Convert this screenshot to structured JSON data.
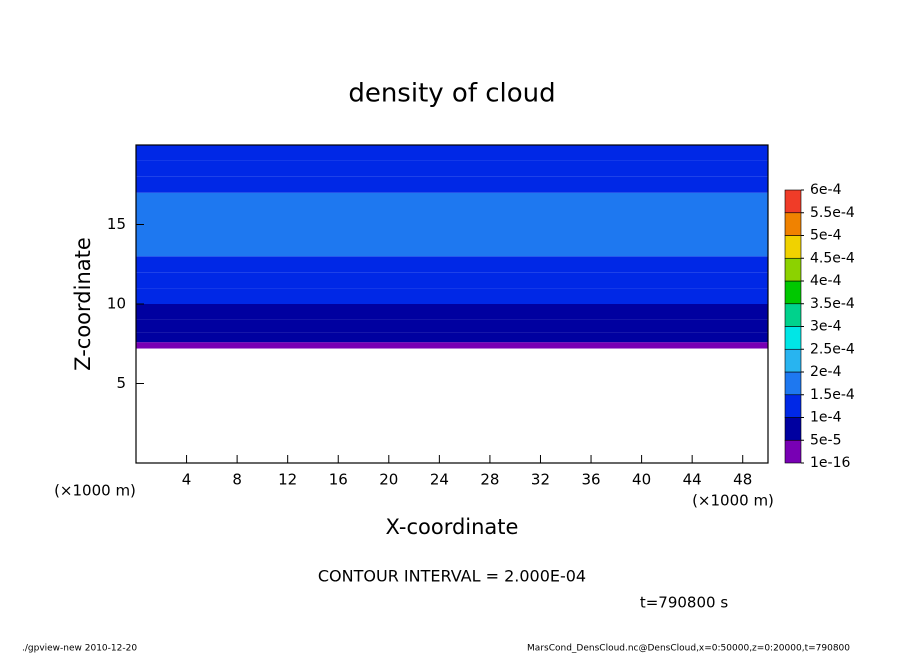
{
  "chart_data": {
    "type": "contour",
    "title": "density of cloud",
    "x_label": "X-coordinate",
    "y_label": "Z-coordinate",
    "x_unit": "(×1000 m)",
    "y_unit": "(×1000 m)",
    "xlim": [
      0,
      50
    ],
    "xticks": [
      4,
      8,
      12,
      16,
      20,
      24,
      28,
      32,
      36,
      40,
      44,
      48
    ],
    "ylim": [
      0,
      20
    ],
    "yticks": [
      5,
      10,
      15
    ],
    "z_edges": [
      7.2,
      7.6,
      8.2,
      9,
      10,
      11,
      12,
      13,
      17,
      18,
      19,
      20
    ],
    "values": [
      3e-05,
      6e-05,
      8e-05,
      9.5e-05,
      0.00011,
      0.000125,
      0.00014,
      0.00016,
      0.00014,
      0.00012,
      0.00011
    ],
    "levels": [
      {
        "value": 1e-16,
        "label": "1e-16"
      },
      {
        "value": 5e-05,
        "label": "5e-5"
      },
      {
        "value": 0.0001,
        "label": "1e-4"
      },
      {
        "value": 0.00015,
        "label": "1.5e-4"
      },
      {
        "value": 0.0002,
        "label": "2e-4"
      },
      {
        "value": 0.00025,
        "label": "2.5e-4"
      },
      {
        "value": 0.0003,
        "label": "3e-4"
      },
      {
        "value": 0.00035,
        "label": "3.5e-4"
      },
      {
        "value": 0.0004,
        "label": "4e-4"
      },
      {
        "value": 0.00045,
        "label": "4.5e-4"
      },
      {
        "value": 0.0005,
        "label": "5e-4"
      },
      {
        "value": 0.00055,
        "label": "5.5e-4"
      },
      {
        "value": 0.0006,
        "label": "6e-4"
      }
    ],
    "colors": [
      "#7800b4",
      "#0000a0",
      "#0028e6",
      "#1e78f0",
      "#28b4f0",
      "#00e6e6",
      "#00d28c",
      "#00c800",
      "#8cd200",
      "#f0d200",
      "#f08200",
      "#f03c28"
    ],
    "contour_interval": "CONTOUR INTERVAL = 2.000E-04",
    "time": "t=790800 s",
    "footer_left": "./gpview-new  2010-12-20",
    "footer_right": "MarsCond_DensCloud.nc@DensCloud,x=0:50000,z=0:20000,t=790800"
  }
}
